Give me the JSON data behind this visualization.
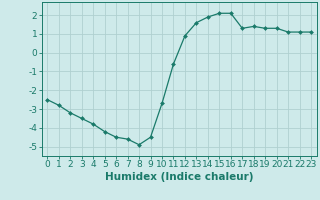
{
  "x": [
    0,
    1,
    2,
    3,
    4,
    5,
    6,
    7,
    8,
    9,
    10,
    11,
    12,
    13,
    14,
    15,
    16,
    17,
    18,
    19,
    20,
    21,
    22,
    23
  ],
  "y": [
    -2.5,
    -2.8,
    -3.2,
    -3.5,
    -3.8,
    -4.2,
    -4.5,
    -4.6,
    -4.9,
    -4.5,
    -2.7,
    -0.6,
    0.9,
    1.6,
    1.9,
    2.1,
    2.1,
    1.3,
    1.4,
    1.3,
    1.3,
    1.1,
    1.1,
    1.1
  ],
  "line_color": "#1a7a6a",
  "marker": "D",
  "marker_size": 2.0,
  "bg_color": "#ceeaea",
  "grid_color": "#b0d0d0",
  "xlabel": "Humidex (Indice chaleur)",
  "xlim": [
    -0.5,
    23.5
  ],
  "ylim": [
    -5.5,
    2.7
  ],
  "yticks": [
    -5,
    -4,
    -3,
    -2,
    -1,
    0,
    1,
    2
  ],
  "xticks": [
    0,
    1,
    2,
    3,
    4,
    5,
    6,
    7,
    8,
    9,
    10,
    11,
    12,
    13,
    14,
    15,
    16,
    17,
    18,
    19,
    20,
    21,
    22,
    23
  ],
  "tick_color": "#1a7a6a",
  "label_fontsize": 7.5,
  "tick_fontsize": 6.5
}
